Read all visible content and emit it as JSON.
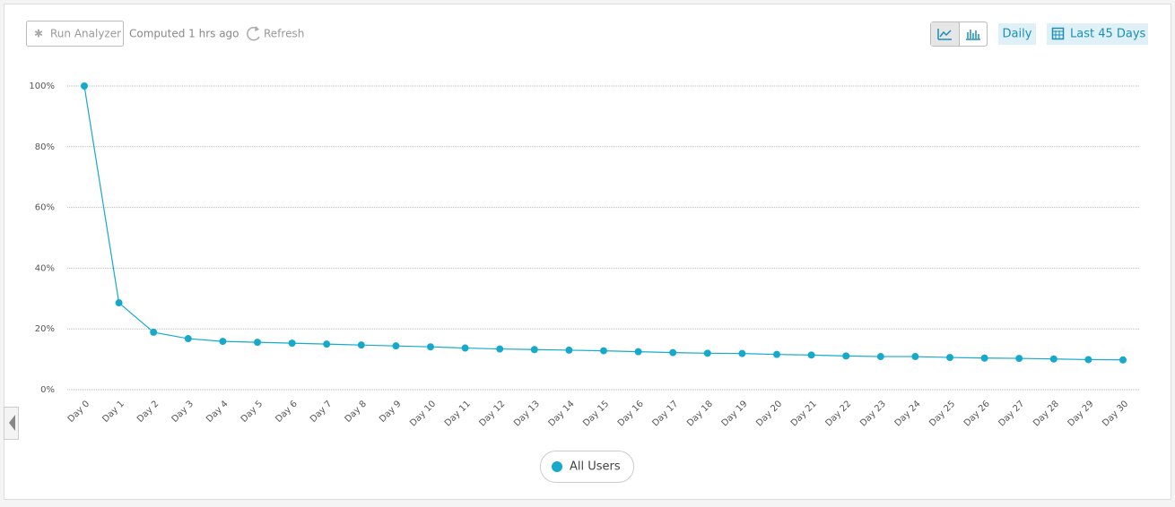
{
  "toolbar": {
    "run_analyzer": "Run Analyzer",
    "computed": "Computed 1 hrs ago",
    "refresh": "Refresh",
    "interval": "Daily",
    "range": "Last 45 Days"
  },
  "chart_data": {
    "type": "line",
    "categories": [
      "Day 0",
      "Day 1",
      "Day 2",
      "Day 3",
      "Day 4",
      "Day 5",
      "Day 6",
      "Day 7",
      "Day 8",
      "Day 9",
      "Day 10",
      "Day 11",
      "Day 12",
      "Day 13",
      "Day 14",
      "Day 15",
      "Day 16",
      "Day 17",
      "Day 18",
      "Day 19",
      "Day 20",
      "Day 21",
      "Day 22",
      "Day 23",
      "Day 24",
      "Day 25",
      "Day 26",
      "Day 27",
      "Day 28",
      "Day 29",
      "Day 30"
    ],
    "series": [
      {
        "name": "All Users",
        "color": "#17a9cc",
        "values": [
          100,
          28.6,
          18.9,
          16.8,
          15.9,
          15.6,
          15.3,
          15.0,
          14.7,
          14.4,
          14.1,
          13.7,
          13.4,
          13.2,
          13.0,
          12.8,
          12.5,
          12.2,
          12.0,
          11.9,
          11.6,
          11.4,
          11.1,
          10.9,
          10.9,
          10.6,
          10.4,
          10.3,
          10.1,
          9.9,
          9.8
        ]
      }
    ],
    "ylim": [
      0,
      100
    ],
    "yticks": [
      {
        "value": 0,
        "label": "0%"
      },
      {
        "value": 20,
        "label": "20%"
      },
      {
        "value": 40,
        "label": "40%"
      },
      {
        "value": 60,
        "label": "60%"
      },
      {
        "value": 80,
        "label": "80%"
      },
      {
        "value": 100,
        "label": "100%"
      }
    ],
    "grid": true
  }
}
